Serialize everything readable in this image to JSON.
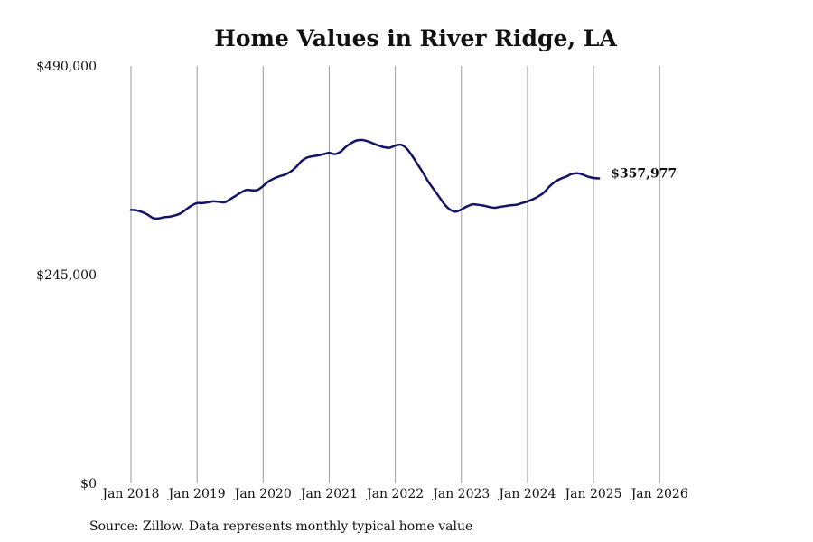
{
  "chart_data": {
    "type": "line",
    "title": "Home Values in River Ridge, LA",
    "source": "Source: Zillow. Data represents monthly typical home value",
    "xlabel": "",
    "ylabel": "",
    "grid": "vertical lines at each x tick",
    "ylim": [
      0,
      490000
    ],
    "xlim": [
      "2018-01",
      "2026-09"
    ],
    "y_ticks": [
      "$0",
      "$245,000",
      "$490,000"
    ],
    "y_tick_values": [
      0,
      245000,
      490000
    ],
    "x_ticks": [
      "Jan 2018",
      "Jan 2019",
      "Jan 2020",
      "Jan 2021",
      "Jan 2022",
      "Jan 2023",
      "Jan 2024",
      "Jan 2025",
      "Jan 2026"
    ],
    "x_tick_values": [
      "2018-01",
      "2019-01",
      "2020-01",
      "2021-01",
      "2022-01",
      "2023-01",
      "2024-01",
      "2025-01",
      "2026-01"
    ],
    "end_label": "$357,977",
    "series": [
      {
        "color": "#141466",
        "points": [
          [
            "2018-01",
            321000
          ],
          [
            "2018-02",
            320500
          ],
          [
            "2018-03",
            318500
          ],
          [
            "2018-04",
            315500
          ],
          [
            "2018-05",
            311500
          ],
          [
            "2018-06",
            311000
          ],
          [
            "2018-07",
            312500
          ],
          [
            "2018-08",
            313000
          ],
          [
            "2018-09",
            314500
          ],
          [
            "2018-10",
            317000
          ],
          [
            "2018-11",
            321500
          ],
          [
            "2018-12",
            326000
          ],
          [
            "2019-01",
            329000
          ],
          [
            "2019-02",
            329000
          ],
          [
            "2019-03",
            330000
          ],
          [
            "2019-04",
            331000
          ],
          [
            "2019-05",
            330500
          ],
          [
            "2019-06",
            330000
          ],
          [
            "2019-07",
            333500
          ],
          [
            "2019-08",
            337500
          ],
          [
            "2019-09",
            341500
          ],
          [
            "2019-10",
            344500
          ],
          [
            "2019-11",
            344000
          ],
          [
            "2019-12",
            344500
          ],
          [
            "2020-01",
            349000
          ],
          [
            "2020-02",
            354500
          ],
          [
            "2020-03",
            358000
          ],
          [
            "2020-04",
            360500
          ],
          [
            "2020-05",
            362500
          ],
          [
            "2020-06",
            366000
          ],
          [
            "2020-07",
            371500
          ],
          [
            "2020-08",
            378500
          ],
          [
            "2020-09",
            382500
          ],
          [
            "2020-10",
            384000
          ],
          [
            "2020-11",
            385000
          ],
          [
            "2020-12",
            386500
          ],
          [
            "2021-01",
            388000
          ],
          [
            "2021-02",
            386500
          ],
          [
            "2021-03",
            389000
          ],
          [
            "2021-04",
            395000
          ],
          [
            "2021-05",
            399500
          ],
          [
            "2021-06",
            402500
          ],
          [
            "2021-07",
            403000
          ],
          [
            "2021-08",
            401500
          ],
          [
            "2021-09",
            399000
          ],
          [
            "2021-10",
            396500
          ],
          [
            "2021-11",
            394500
          ],
          [
            "2021-12",
            394000
          ],
          [
            "2022-01",
            396500
          ],
          [
            "2022-02",
            397500
          ],
          [
            "2022-03",
            393500
          ],
          [
            "2022-04",
            385000
          ],
          [
            "2022-05",
            375000
          ],
          [
            "2022-06",
            365000
          ],
          [
            "2022-07",
            354000
          ],
          [
            "2022-08",
            345000
          ],
          [
            "2022-09",
            336000
          ],
          [
            "2022-10",
            327000
          ],
          [
            "2022-11",
            321000
          ],
          [
            "2022-12",
            319000
          ],
          [
            "2023-01",
            321500
          ],
          [
            "2023-02",
            325000
          ],
          [
            "2023-03",
            327500
          ],
          [
            "2023-04",
            327000
          ],
          [
            "2023-05",
            326000
          ],
          [
            "2023-06",
            324500
          ],
          [
            "2023-07",
            323500
          ],
          [
            "2023-08",
            324500
          ],
          [
            "2023-09",
            325500
          ],
          [
            "2023-10",
            326500
          ],
          [
            "2023-11",
            327000
          ],
          [
            "2023-12",
            329000
          ],
          [
            "2024-01",
            331000
          ],
          [
            "2024-02",
            333500
          ],
          [
            "2024-03",
            337000
          ],
          [
            "2024-04",
            341500
          ],
          [
            "2024-05",
            348500
          ],
          [
            "2024-06",
            354000
          ],
          [
            "2024-07",
            357500
          ],
          [
            "2024-08",
            360000
          ],
          [
            "2024-09",
            363000
          ],
          [
            "2024-10",
            364000
          ],
          [
            "2024-11",
            362500
          ],
          [
            "2024-12",
            360000
          ],
          [
            "2025-01",
            358500
          ],
          [
            "2025-02",
            357977
          ]
        ]
      }
    ]
  }
}
